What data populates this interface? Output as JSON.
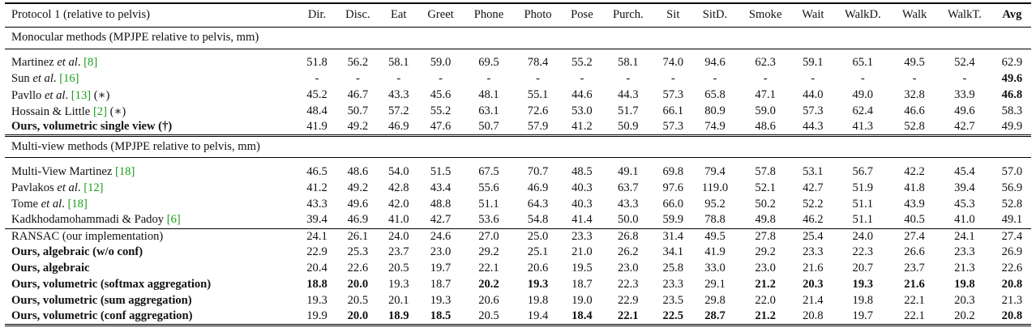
{
  "header": {
    "first": "Protocol 1 (relative to pelvis)",
    "cols": [
      "Dir.",
      "Disc.",
      "Eat",
      "Greet",
      "Phone",
      "Photo",
      "Pose",
      "Purch.",
      "Sit",
      "SitD.",
      "Smoke",
      "Wait",
      "WalkD.",
      "Walk",
      "WalkT.",
      "Avg"
    ]
  },
  "sections": [
    {
      "title": "Monocular methods (MPJPE relative to pelvis, mm)",
      "rows": [
        {
          "name": [
            {
              "t": "Martinez "
            },
            {
              "t": "et al",
              "i": true
            },
            {
              "t": ". "
            },
            {
              "t": "[8]",
              "ref": true
            }
          ],
          "values": [
            "51.8",
            "56.2",
            "58.1",
            "59.0",
            "69.5",
            "78.4",
            "55.2",
            "58.1",
            "74.0",
            "94.6",
            "62.3",
            "59.1",
            "65.1",
            "49.5",
            "52.4",
            "62.9"
          ],
          "bold": []
        },
        {
          "name": [
            {
              "t": "Sun "
            },
            {
              "t": "et al",
              "i": true
            },
            {
              "t": ". "
            },
            {
              "t": "[16]",
              "ref": true
            }
          ],
          "values": [
            "-",
            "-",
            "-",
            "-",
            "-",
            "-",
            "-",
            "-",
            "-",
            "-",
            "-",
            "-",
            "-",
            "-",
            "-",
            "49.6"
          ],
          "bold": [
            15
          ]
        },
        {
          "name": [
            {
              "t": "Pavllo "
            },
            {
              "t": "et al",
              "i": true
            },
            {
              "t": ". "
            },
            {
              "t": "[13]",
              "ref": true
            },
            {
              "t": " (∗)"
            }
          ],
          "values": [
            "45.2",
            "46.7",
            "43.3",
            "45.6",
            "48.1",
            "55.1",
            "44.6",
            "44.3",
            "57.3",
            "65.8",
            "47.1",
            "44.0",
            "49.0",
            "32.8",
            "33.9",
            "46.8"
          ],
          "bold": [
            15
          ]
        },
        {
          "name": [
            {
              "t": "Hossain & Little "
            },
            {
              "t": "[2]",
              "ref": true
            },
            {
              "t": " (∗)"
            }
          ],
          "values": [
            "48.4",
            "50.7",
            "57.2",
            "55.2",
            "63.1",
            "72.6",
            "53.0",
            "51.7",
            "66.1",
            "80.9",
            "59.0",
            "57.3",
            "62.4",
            "46.6",
            "49.6",
            "58.3"
          ],
          "bold": []
        },
        {
          "name": [
            {
              "t": "Ours, volumetric single view (†)",
              "b": true
            }
          ],
          "values": [
            "41.9",
            "49.2",
            "46.9",
            "47.6",
            "50.7",
            "57.9",
            "41.2",
            "50.9",
            "57.3",
            "74.9",
            "48.6",
            "44.3",
            "41.3",
            "52.8",
            "42.7",
            "49.9"
          ],
          "bold": []
        }
      ]
    },
    {
      "title": "Multi-view methods (MPJPE relative to pelvis, mm)",
      "rows": [
        {
          "name": [
            {
              "t": "Multi-View Martinez "
            },
            {
              "t": "[18]",
              "ref": true
            }
          ],
          "values": [
            "46.5",
            "48.6",
            "54.0",
            "51.5",
            "67.5",
            "70.7",
            "48.5",
            "49.1",
            "69.8",
            "79.4",
            "57.8",
            "53.1",
            "56.7",
            "42.2",
            "45.4",
            "57.0"
          ],
          "bold": []
        },
        {
          "name": [
            {
              "t": "Pavlakos "
            },
            {
              "t": "et al",
              "i": true
            },
            {
              "t": ". "
            },
            {
              "t": "[12]",
              "ref": true
            }
          ],
          "values": [
            "41.2",
            "49.2",
            "42.8",
            "43.4",
            "55.6",
            "46.9",
            "40.3",
            "63.7",
            "97.6",
            "119.0",
            "52.1",
            "42.7",
            "51.9",
            "41.8",
            "39.4",
            "56.9"
          ],
          "bold": []
        },
        {
          "name": [
            {
              "t": "Tome "
            },
            {
              "t": "et al",
              "i": true
            },
            {
              "t": ". "
            },
            {
              "t": "[18]",
              "ref": true
            }
          ],
          "values": [
            "43.3",
            "49.6",
            "42.0",
            "48.8",
            "51.1",
            "64.3",
            "40.3",
            "43.3",
            "66.0",
            "95.2",
            "50.2",
            "52.2",
            "51.1",
            "43.9",
            "45.3",
            "52.8"
          ],
          "bold": []
        },
        {
          "name": [
            {
              "t": "Kadkhodamohammadi & Padoy "
            },
            {
              "t": "[6]",
              "ref": true
            }
          ],
          "values": [
            "39.4",
            "46.9",
            "41.0",
            "42.7",
            "53.6",
            "54.8",
            "41.4",
            "50.0",
            "59.9",
            "78.8",
            "49.8",
            "46.2",
            "51.1",
            "40.5",
            "41.0",
            "49.1"
          ],
          "bold": []
        }
      ],
      "rows2": [
        {
          "name": [
            {
              "t": "RANSAC (our implementation)"
            }
          ],
          "values": [
            "24.1",
            "26.1",
            "24.0",
            "24.6",
            "27.0",
            "25.0",
            "23.3",
            "26.8",
            "31.4",
            "49.5",
            "27.8",
            "25.4",
            "24.0",
            "27.4",
            "24.1",
            "27.4"
          ],
          "bold": []
        },
        {
          "name": [
            {
              "t": "Ours, algebraic (w/o conf)",
              "b": true
            }
          ],
          "values": [
            "22.9",
            "25.3",
            "23.7",
            "23.0",
            "29.2",
            "25.1",
            "21.0",
            "26.2",
            "34.1",
            "41.9",
            "29.2",
            "23.3",
            "22.3",
            "26.6",
            "23.3",
            "26.9"
          ],
          "bold": []
        },
        {
          "name": [
            {
              "t": "Ours, algebraic",
              "b": true
            }
          ],
          "values": [
            "20.4",
            "22.6",
            "20.5",
            "19.7",
            "22.1",
            "20.6",
            "19.5",
            "23.0",
            "25.8",
            "33.0",
            "23.0",
            "21.6",
            "20.7",
            "23.7",
            "21.3",
            "22.6"
          ],
          "bold": []
        },
        {
          "name": [
            {
              "t": "Ours, volumetric (softmax aggregation)",
              "b": true
            }
          ],
          "values": [
            "18.8",
            "20.0",
            "19.3",
            "18.7",
            "20.2",
            "19.3",
            "18.7",
            "22.3",
            "23.3",
            "29.1",
            "21.2",
            "20.3",
            "19.3",
            "21.6",
            "19.8",
            "20.8"
          ],
          "bold": [
            0,
            1,
            4,
            5,
            10,
            11,
            12,
            13,
            14,
            15
          ]
        },
        {
          "name": [
            {
              "t": "Ours, volumetric (sum aggregation)",
              "b": true
            }
          ],
          "values": [
            "19.3",
            "20.5",
            "20.1",
            "19.3",
            "20.6",
            "19.8",
            "19.0",
            "22.9",
            "23.5",
            "29.8",
            "22.0",
            "21.4",
            "19.8",
            "22.1",
            "20.3",
            "21.3"
          ],
          "bold": []
        },
        {
          "name": [
            {
              "t": "Ours, volumetric (conf aggregation)",
              "b": true
            }
          ],
          "values": [
            "19.9",
            "20.0",
            "18.9",
            "18.5",
            "20.5",
            "19.4",
            "18.4",
            "22.1",
            "22.5",
            "28.7",
            "21.2",
            "20.8",
            "19.7",
            "22.1",
            "20.2",
            "20.8"
          ],
          "bold": [
            1,
            2,
            3,
            6,
            7,
            8,
            9,
            10,
            15
          ]
        }
      ]
    }
  ]
}
